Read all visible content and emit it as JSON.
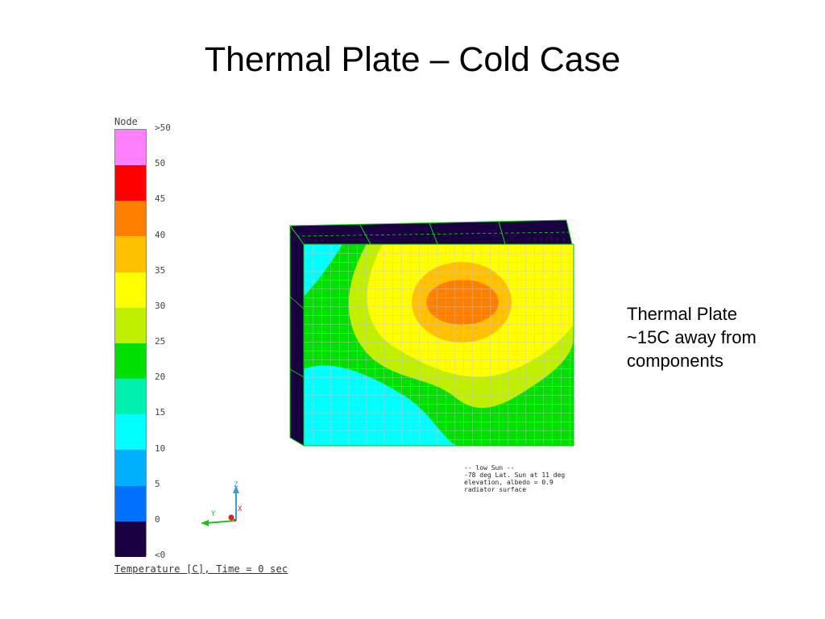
{
  "slide": {
    "title": "Thermal Plate – Cold Case"
  },
  "legend": {
    "header": "Node",
    "caption": "Temperature [C], Time = 0 sec",
    "labels": [
      ">50",
      "50",
      "45",
      "40",
      "35",
      "30",
      "25",
      "20",
      "15",
      "10",
      "5",
      "0",
      "<0"
    ],
    "colors": [
      "#ff80ff",
      "#ff0000",
      "#ff8000",
      "#ffc000",
      "#ffff00",
      "#c0f000",
      "#00e000",
      "#00f0b0",
      "#00ffff",
      "#00b0ff",
      "#0070ff",
      "#1a0040"
    ]
  },
  "annotation": {
    "lines": [
      "Thermal Plate",
      "~15C away from",
      "components"
    ]
  },
  "case_note": {
    "lines": [
      "-- low Sun --",
      "-78 deg Lat. Sun at 11 deg",
      "elevation, albedo = 0.9",
      "",
      "radiator surface"
    ]
  },
  "axes_triad": {
    "z": "Z",
    "y": "Y",
    "x": "X"
  }
}
